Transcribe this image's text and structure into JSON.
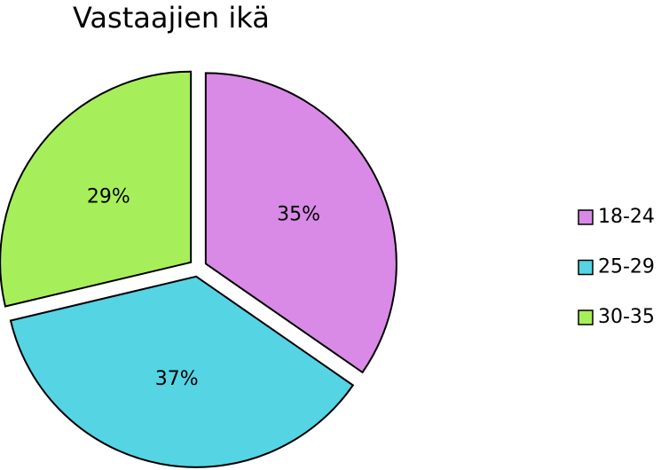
{
  "chart_data": {
    "type": "pie",
    "title": "Vastaajien ikä",
    "categories": [
      "18-24",
      "25-29",
      "30-35"
    ],
    "values": [
      35,
      37,
      29
    ],
    "value_labels": [
      "35%",
      "37%",
      "29%"
    ],
    "colors": [
      "#d98ae6",
      "#55d4e4",
      "#a6ef5a"
    ],
    "legend": "right"
  }
}
